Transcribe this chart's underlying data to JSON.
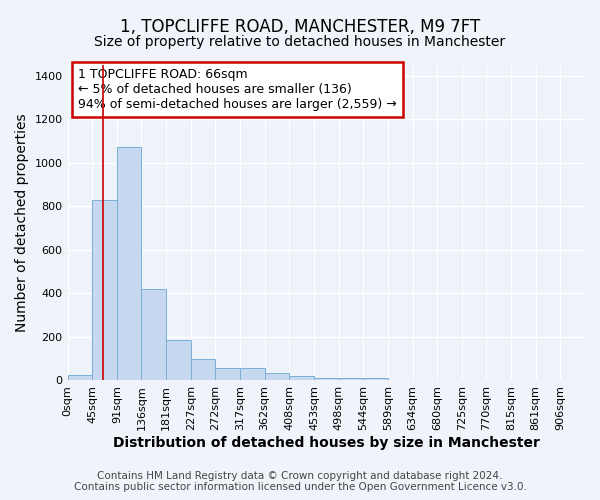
{
  "title": "1, TOPCLIFFE ROAD, MANCHESTER, M9 7FT",
  "subtitle": "Size of property relative to detached houses in Manchester",
  "xlabel": "Distribution of detached houses by size in Manchester",
  "ylabel": "Number of detached properties",
  "footer_line1": "Contains HM Land Registry data © Crown copyright and database right 2024.",
  "footer_line2": "Contains public sector information licensed under the Open Government Licence v3.0.",
  "bar_labels": [
    "0sqm",
    "45sqm",
    "91sqm",
    "136sqm",
    "181sqm",
    "227sqm",
    "272sqm",
    "317sqm",
    "362sqm",
    "408sqm",
    "453sqm",
    "498sqm",
    "544sqm",
    "589sqm",
    "634sqm",
    "680sqm",
    "725sqm",
    "770sqm",
    "815sqm",
    "861sqm",
    "906sqm"
  ],
  "bar_values": [
    25,
    830,
    1075,
    420,
    185,
    100,
    57,
    57,
    35,
    20,
    13,
    13,
    10,
    0,
    0,
    0,
    0,
    0,
    0,
    0,
    0
  ],
  "bar_color": "#c5d8f0",
  "bar_edge_color": "#7aafd4",
  "ylim": [
    0,
    1450
  ],
  "yticks": [
    0,
    200,
    400,
    600,
    800,
    1000,
    1200,
    1400
  ],
  "annotation_text": "1 TOPCLIFFE ROAD: 66sqm\n← 5% of detached houses are smaller (136)\n94% of semi-detached houses are larger (2,559) →",
  "annotation_box_color": "#ffffff",
  "annotation_box_edge_color": "#cc0000",
  "vline_color": "#cc0000",
  "background_color": "#f0f4fa",
  "plot_bg_color": "#eef2f9",
  "grid_color": "#ffffff",
  "title_fontsize": 12,
  "subtitle_fontsize": 10,
  "axis_label_fontsize": 10,
  "tick_fontsize": 8,
  "annotation_fontsize": 9,
  "footer_fontsize": 7.5
}
